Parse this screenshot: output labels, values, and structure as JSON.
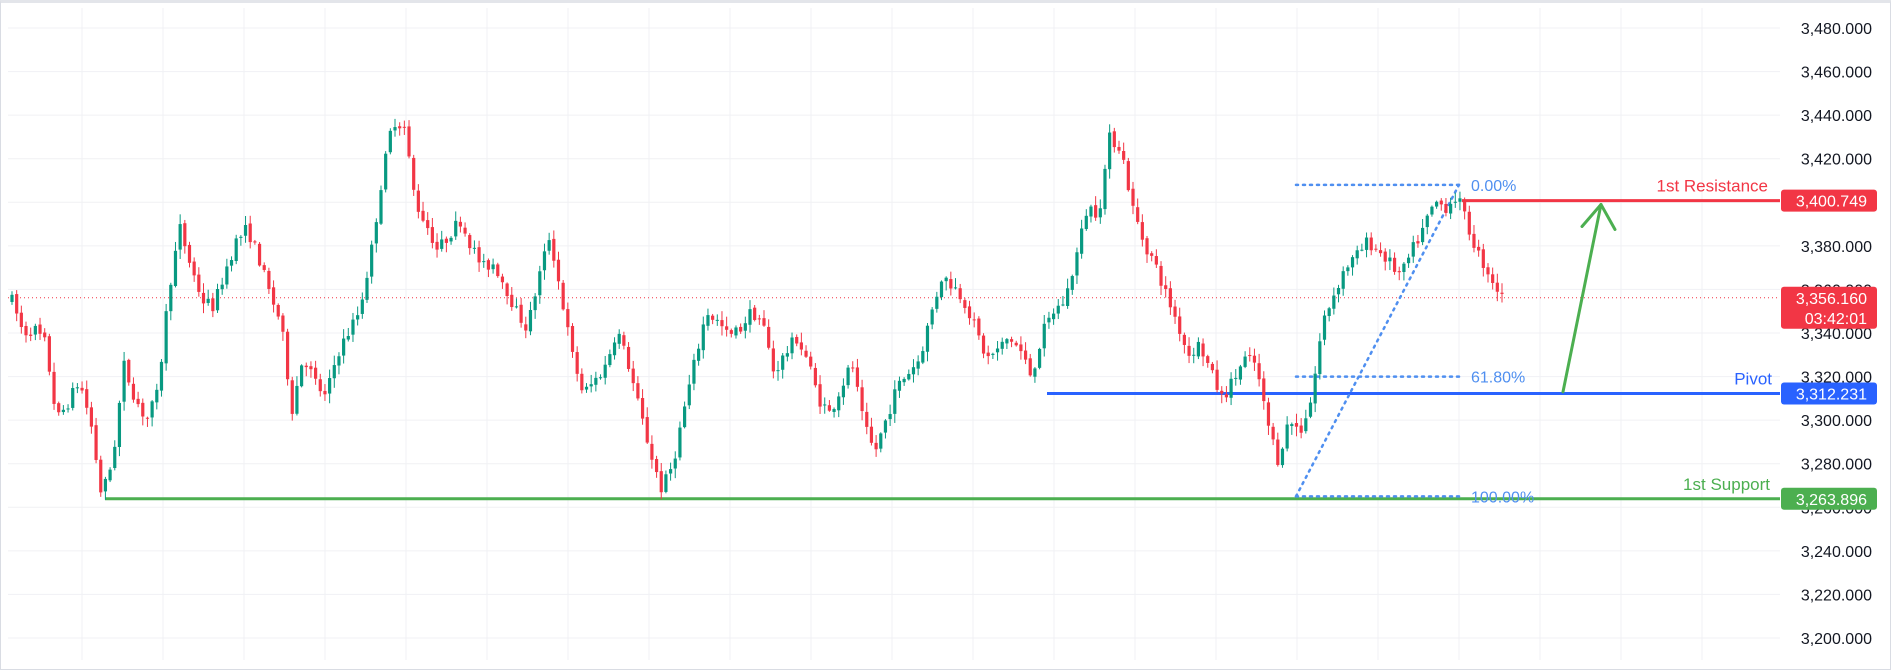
{
  "chart_data": {
    "type": "candlestick",
    "price_axis": {
      "ticks": [
        "3,480.000",
        "3,460.000",
        "3,440.000",
        "3,420.000",
        "3,400.000",
        "3,380.000",
        "3,360.000",
        "3,340.000",
        "3,320.000",
        "3,300.000",
        "3,280.000",
        "3,260.000",
        "3,240.000",
        "3,220.000",
        "3,200.000"
      ],
      "tick_values": [
        3480,
        3460,
        3440,
        3420,
        3400,
        3380,
        3360,
        3340,
        3320,
        3300,
        3280,
        3260,
        3240,
        3220,
        3200
      ],
      "ylim": [
        3193,
        3487
      ]
    },
    "grid": true,
    "current_price": {
      "value": 3356.16,
      "label": "3,356.160",
      "countdown": "03:42:01",
      "color": "#f23645"
    },
    "levels": [
      {
        "name": "1st Resistance",
        "value": 3400.749,
        "label": "3,400.749",
        "color": "#f23645"
      },
      {
        "name": "Pivot",
        "value": 3312.231,
        "label": "3,312.231",
        "color": "#2962ff"
      },
      {
        "name": "1st Support",
        "value": 3263.896,
        "label": "3,263.896",
        "color": "#4caf50"
      }
    ],
    "fibonacci": {
      "high": 3408,
      "low": 3265,
      "levels": [
        {
          "label": "0.00%",
          "value": 3408
        },
        {
          "label": "61.80%",
          "value": 3320
        },
        {
          "label": "100.00%",
          "value": 3265
        }
      ],
      "color": "#4f8ff0"
    },
    "projection_arrow": {
      "from": 3313,
      "to": 3399,
      "color": "#4caf50"
    },
    "price_path": [
      3355,
      3340,
      3342,
      3335,
      3300,
      3308,
      3318,
      3300,
      3265,
      3282,
      3325,
      3310,
      3300,
      3312,
      3360,
      3388,
      3370,
      3355,
      3352,
      3368,
      3382,
      3388,
      3375,
      3358,
      3345,
      3305,
      3330,
      3318,
      3310,
      3330,
      3340,
      3350,
      3375,
      3410,
      3438,
      3435,
      3400,
      3390,
      3378,
      3385,
      3392,
      3380,
      3370,
      3372,
      3362,
      3350,
      3342,
      3365,
      3385,
      3358,
      3330,
      3312,
      3318,
      3325,
      3342,
      3326,
      3305,
      3285,
      3268,
      3280,
      3305,
      3328,
      3350,
      3345,
      3338,
      3342,
      3350,
      3345,
      3322,
      3330,
      3338,
      3328,
      3310,
      3303,
      3315,
      3326,
      3298,
      3285,
      3300,
      3315,
      3322,
      3328,
      3348,
      3366,
      3362,
      3355,
      3342,
      3328,
      3332,
      3338,
      3332,
      3320,
      3340,
      3350,
      3355,
      3375,
      3398,
      3395,
      3430,
      3425,
      3398,
      3382,
      3372,
      3358,
      3345,
      3330,
      3335,
      3322,
      3310,
      3318,
      3328,
      3326,
      3300,
      3282,
      3300,
      3295,
      3310,
      3345,
      3358,
      3370,
      3375,
      3382,
      3378,
      3372,
      3366,
      3378,
      3388,
      3400,
      3398,
      3403,
      3388,
      3375,
      3366,
      3356
    ]
  }
}
